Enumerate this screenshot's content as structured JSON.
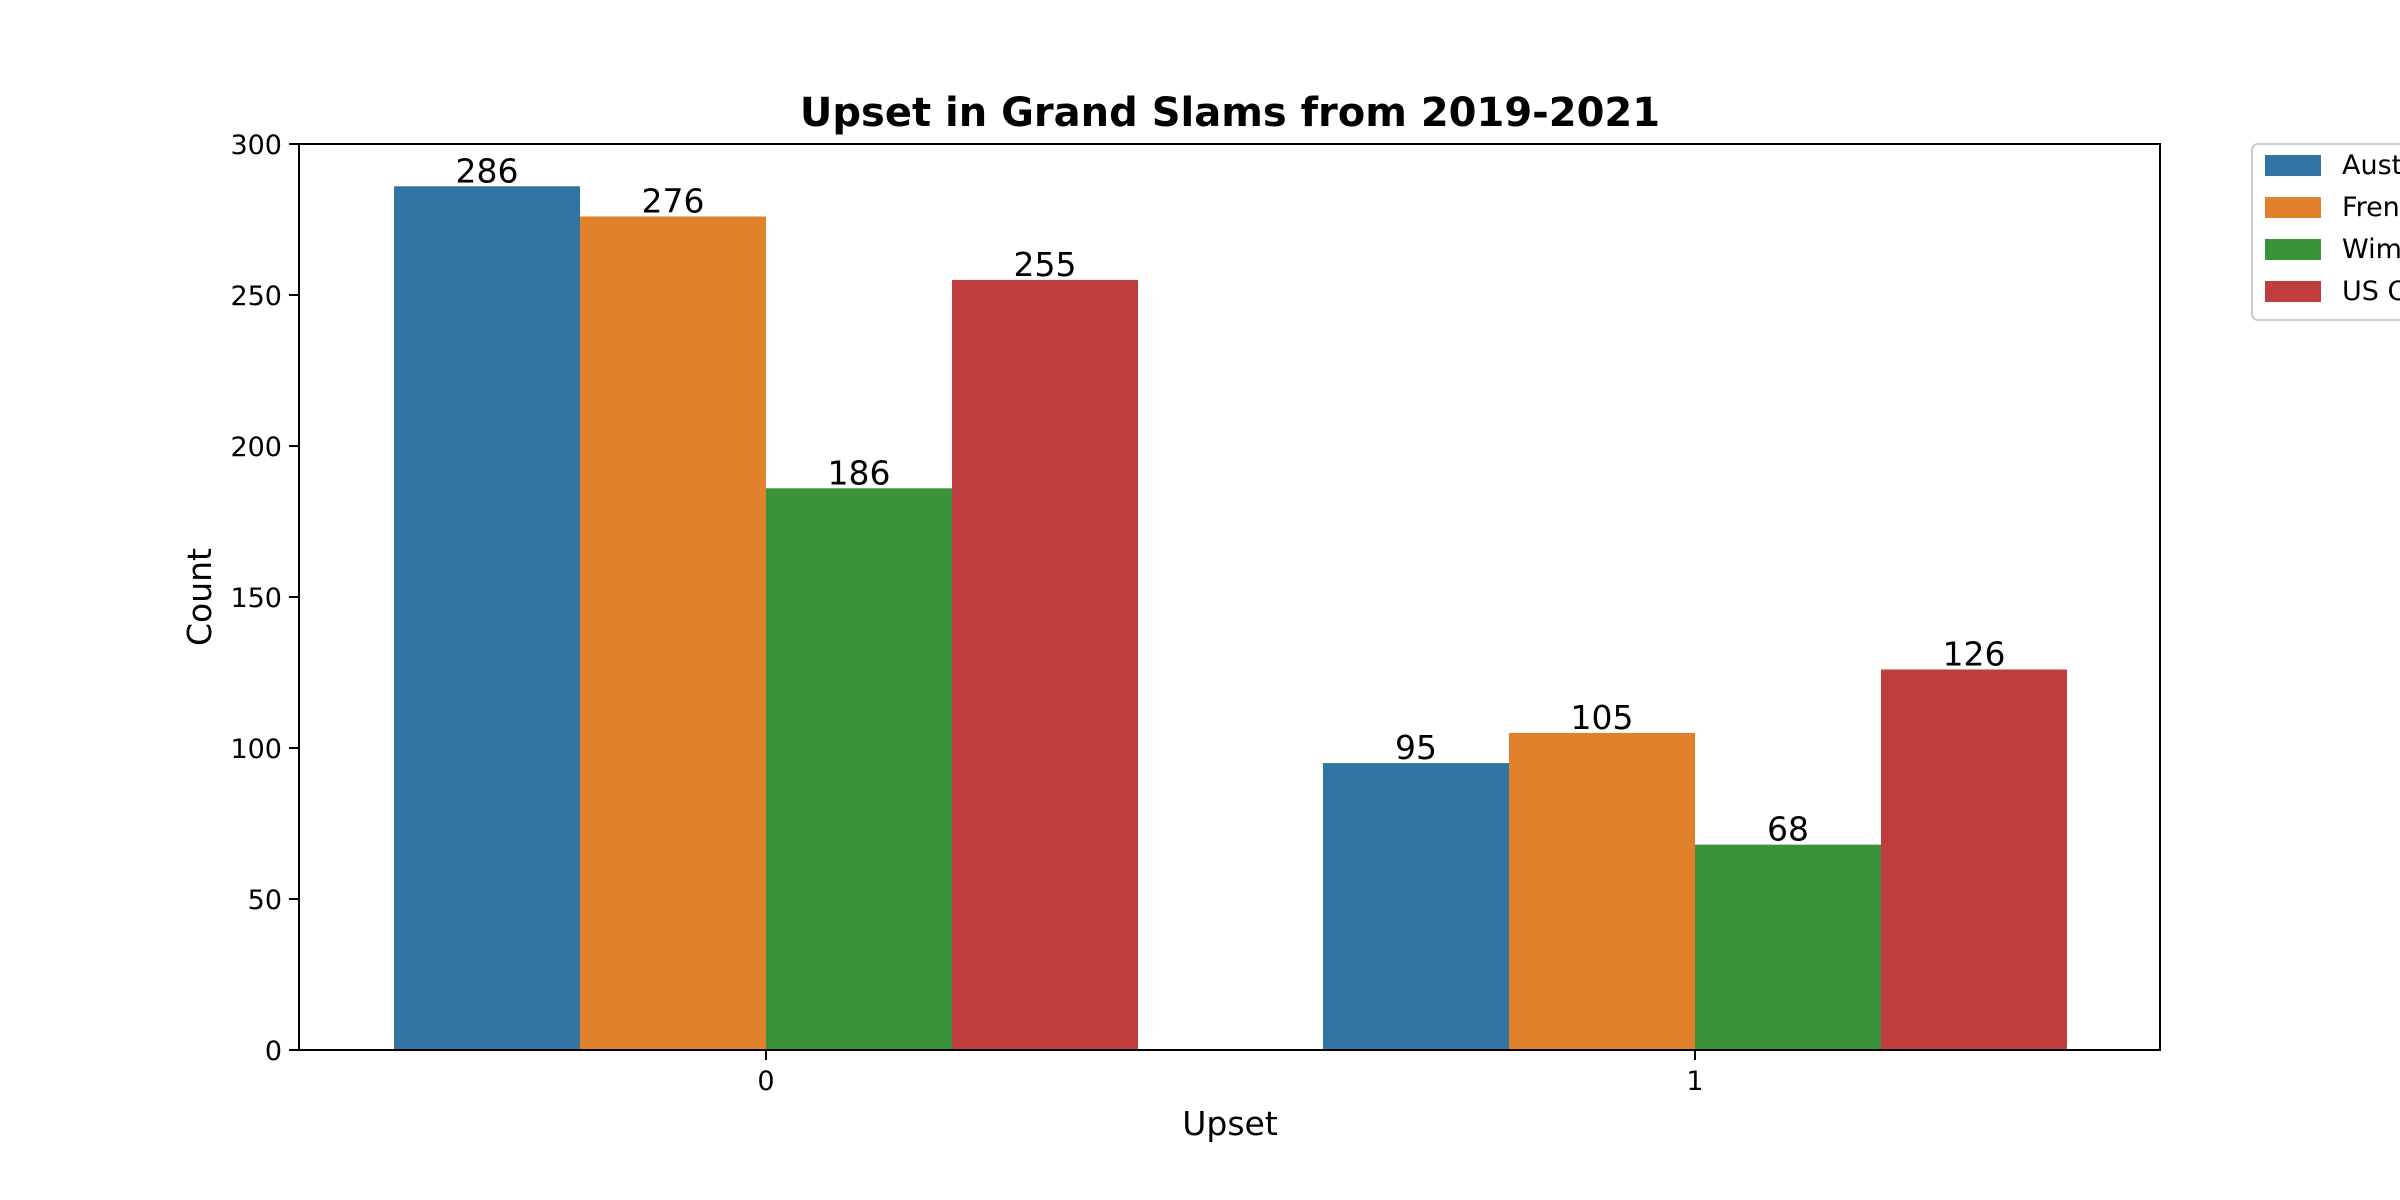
{
  "chart_data": {
    "type": "bar",
    "title": "Upset in Grand Slams from 2019-2021",
    "xlabel": "Upset",
    "ylabel": "Count",
    "categories": [
      "0",
      "1"
    ],
    "ylim": [
      0,
      300
    ],
    "yticks": [
      0,
      50,
      100,
      150,
      200,
      250,
      300
    ],
    "grid": false,
    "legend_position": "outside-right",
    "series": [
      {
        "name": "Aust",
        "color": "#3274a1",
        "values": [
          286,
          95
        ]
      },
      {
        "name": "Fren",
        "color": "#e1812c",
        "values": [
          276,
          105
        ]
      },
      {
        "name": "Wim",
        "color": "#3a923a",
        "values": [
          186,
          68
        ]
      },
      {
        "name": "US O",
        "color": "#c03d3e",
        "values": [
          255,
          126
        ]
      }
    ]
  }
}
